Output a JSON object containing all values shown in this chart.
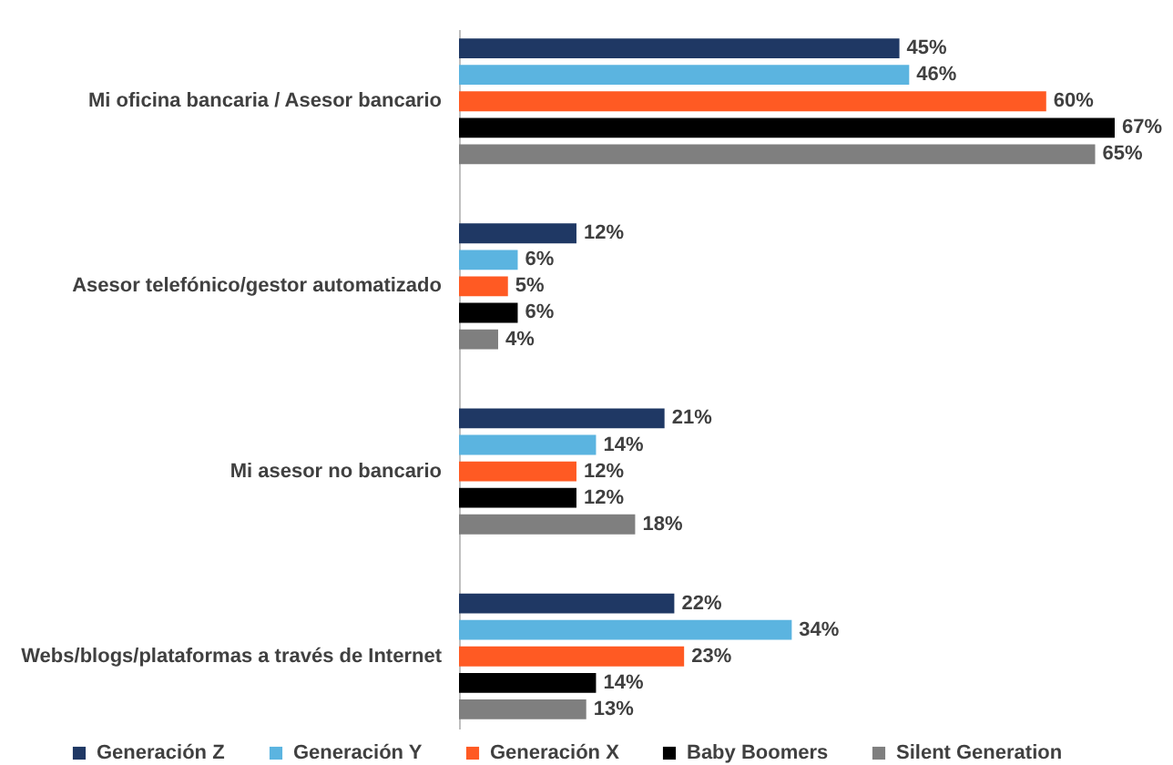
{
  "chart_data": {
    "type": "bar",
    "orientation": "horizontal",
    "legend": "bottom",
    "tick_labels": "y",
    "categories": [
      "Mi oficina bancaria / Asesor bancario",
      "Asesor telefónico/gestor automatizado",
      "Mi asesor no bancario",
      "Webs/blogs/plataformas a través de Internet"
    ],
    "series": [
      {
        "name": "Generación Z",
        "color": "#1f3864",
        "values": [
          45,
          12,
          21,
          22
        ],
        "value_labels": [
          "45%",
          "12%",
          "21%",
          "22%"
        ]
      },
      {
        "name": "Generación Y",
        "color": "#5bb4e0",
        "values": [
          46,
          6,
          14,
          34
        ],
        "value_labels": [
          "46%",
          "6%",
          "14%",
          "34%"
        ]
      },
      {
        "name": "Generación X",
        "color": "#ff5a23",
        "values": [
          60,
          5,
          12,
          23
        ],
        "value_labels": [
          "60%",
          "5%",
          "12%",
          "23%"
        ]
      },
      {
        "name": "Baby Boomers",
        "color": "#000000",
        "values": [
          67,
          6,
          12,
          14
        ],
        "value_labels": [
          "67%",
          "6%",
          "12%",
          "14%"
        ]
      },
      {
        "name": "Silent Generation",
        "color": "#7f7f7f",
        "values": [
          65,
          4,
          18,
          13
        ],
        "value_labels": [
          "65%",
          "4%",
          "18%",
          "13%"
        ]
      }
    ]
  }
}
